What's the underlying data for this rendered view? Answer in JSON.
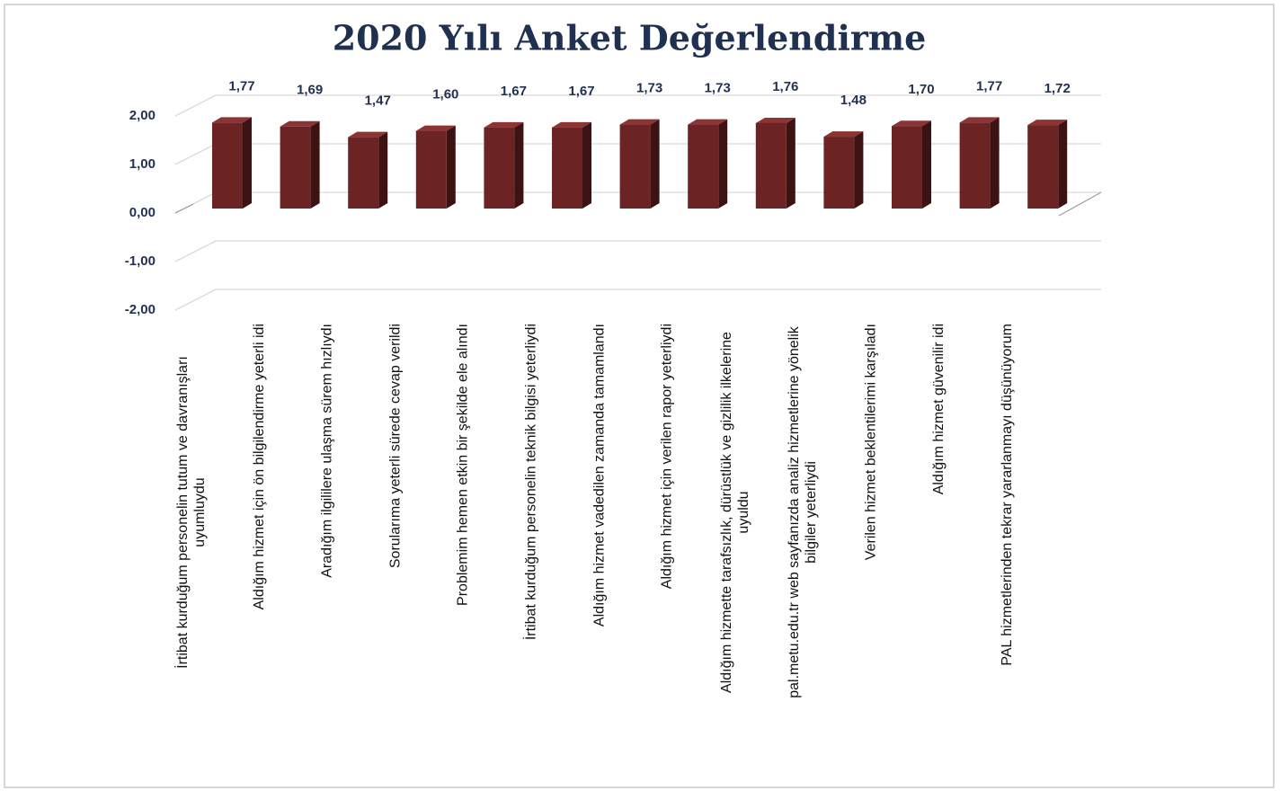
{
  "chart_data": {
    "type": "bar",
    "title": "2020 Yılı Anket Değerlendirme",
    "categories": [
      "İrtibat kurduğum personelin tutum ve davranışları uyumluydu",
      "Aldığım hizmet için ön bilgilendirme yeterli idi",
      "Aradığım ilgililere ulaşma sürem hızlıydı",
      "Sorularıma yeterli sürede cevap verildi",
      "Problemim hemen etkin bir şekilde ele alındı",
      "İrtibat kurduğum personelin teknik bilgisi yeterliydi",
      "Aldığım hizmet vadedilen zamanda tamamlandı",
      "Aldığım hizmet için verilen rapor yeterliydi",
      "Aldığım hizmette tarafsızlık, dürüstlük ve gizlilik ilkelerine uyuldu",
      "pal.metu.edu.tr web sayfanızda analiz hizmetlerine yönelik bilgiler yeterliydi",
      "Verilen hizmet beklentilerimi karşıladı",
      "Aldığım hizmet güvenilir idi",
      "PAL hizmetlerinden tekrar yararlanmayı düşünüyorum"
    ],
    "values": [
      1.77,
      1.69,
      1.47,
      1.6,
      1.67,
      1.67,
      1.73,
      1.73,
      1.76,
      1.48,
      1.7,
      1.77,
      1.72
    ],
    "value_labels": [
      "1,77",
      "1,69",
      "1,47",
      "1,60",
      "1,67",
      "1,67",
      "1,73",
      "1,73",
      "1,76",
      "1,48",
      "1,70",
      "1,77",
      "1,72"
    ],
    "color": "#6b2323",
    "ylim": [
      -2,
      2
    ],
    "yticks": [
      {
        "value": -2,
        "label": "-2,00"
      },
      {
        "value": -1,
        "label": "-1,00"
      },
      {
        "value": 0,
        "label": "0,00"
      },
      {
        "value": 1,
        "label": "1,00"
      },
      {
        "value": 2,
        "label": "2,00"
      }
    ],
    "grid": true
  }
}
